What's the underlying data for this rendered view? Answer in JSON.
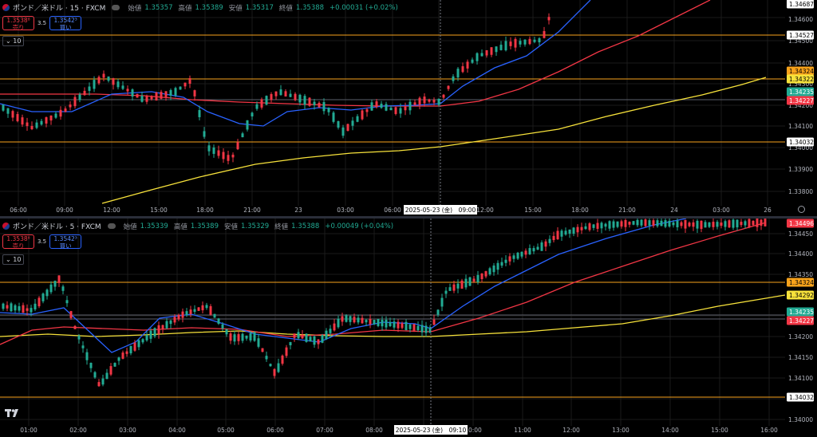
{
  "panels": [
    {
      "id": "top",
      "legend": {
        "symbol": "ポンド／米ドル · 15 · FXCM",
        "open_label": "始値",
        "open": "1.35357",
        "high_label": "高値",
        "high": "1.35389",
        "low_label": "安値",
        "low": "1.35317",
        "close_label": "終値",
        "close": "1.35388",
        "change": "+0.00031 (+0.02%)"
      },
      "trade": {
        "sell_price": "1.3538⁸",
        "sell_label": "売り",
        "spread": "3.5",
        "buy_price": "1.3542³",
        "buy_label": "買い"
      },
      "indicator_label": "10",
      "price_axis": [
        "1.34600",
        "1.34500",
        "1.34400",
        "1.34300",
        "1.34200",
        "1.34100",
        "1.34000",
        "1.33900",
        "1.33800"
      ],
      "time_axis": [
        "06:00",
        "09:00",
        "12:00",
        "15:00",
        "18:00",
        "21:00",
        "23",
        "03:00",
        "06:00",
        "12:00",
        "15:00",
        "18:00",
        "21:00",
        "24",
        "03:00",
        "26"
      ],
      "crosshair_time": "2025-05-23 (金)　09:00",
      "price_tags": [
        {
          "text": "1.34687",
          "color": "#ffffff",
          "text_color": "#000000"
        },
        {
          "text": "1.34527",
          "color": "#ffffff",
          "text_color": "#000000"
        },
        {
          "text": "1.34324",
          "color": "#f7a21b",
          "text_color": "#000000"
        },
        {
          "text": "1.34322",
          "color": "#f7e23b",
          "text_color": "#000000"
        },
        {
          "text": "1.34235",
          "color": "#22ab94",
          "text_color": "#ffffff"
        },
        {
          "text": "1.34227",
          "color": "#f23645",
          "text_color": "#ffffff"
        },
        {
          "text": "1.34032",
          "color": "#ffffff",
          "text_color": "#000000"
        }
      ]
    },
    {
      "id": "bottom",
      "legend": {
        "symbol": "ポンド／米ドル · 5 · FXCM",
        "open_label": "始値",
        "open": "1.35339",
        "high_label": "高値",
        "high": "1.35389",
        "low_label": "安値",
        "low": "1.35329",
        "close_label": "終値",
        "close": "1.35388",
        "change": "+0.00049 (+0.04%)"
      },
      "trade": {
        "sell_price": "1.3538⁸",
        "sell_label": "売り",
        "spread": "3.5",
        "buy_price": "1.3542³",
        "buy_label": "買い"
      },
      "indicator_label": "10",
      "price_axis": [
        "1.34450",
        "1.34400",
        "1.34350",
        "1.34300",
        "1.34250",
        "1.34200",
        "1.34150",
        "1.34100",
        "1.34050",
        "1.34000"
      ],
      "time_axis": [
        "01:00",
        "02:00",
        "03:00",
        "04:00",
        "05:00",
        "06:00",
        "07:00",
        "08:00",
        "10:00",
        "11:00",
        "12:00",
        "13:00",
        "14:00",
        "15:00",
        "16:00"
      ],
      "crosshair_time": "2025-05-23 (金)　09:10",
      "price_tags": [
        {
          "text": "1.34496",
          "color": "#f23645",
          "text_color": "#ffffff"
        },
        {
          "text": "1.34324",
          "color": "#f7a21b",
          "text_color": "#000000"
        },
        {
          "text": "1.34292",
          "color": "#f7e23b",
          "text_color": "#000000"
        },
        {
          "text": "1.34235",
          "color": "#22ab94",
          "text_color": "#ffffff"
        },
        {
          "text": "1.34227",
          "color": "#f23645",
          "text_color": "#ffffff"
        },
        {
          "text": "1.34032",
          "color": "#ffffff",
          "text_color": "#000000"
        }
      ]
    }
  ],
  "colors": {
    "up": "#22ab94",
    "down": "#f23645",
    "ma_fast": "#2962ff",
    "ma_mid": "#f23645",
    "ma_slow": "#f7e23b",
    "hline": "#f7a21b"
  }
}
